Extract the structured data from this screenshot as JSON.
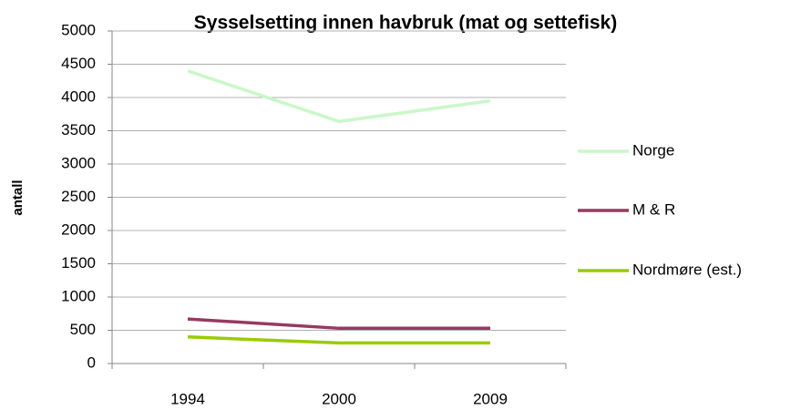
{
  "chart_data": {
    "type": "line",
    "title": "Sysselsetting innen havbruk (mat og settefisk)",
    "y_label": "antall",
    "categories": [
      "1994",
      "2000",
      "2009"
    ],
    "series": [
      {
        "name": "Norge",
        "color": "#c9f7c9",
        "values": [
          4400,
          3640,
          3950
        ]
      },
      {
        "name": "M & R",
        "color": "#963a62",
        "values": [
          670,
          530,
          530
        ]
      },
      {
        "name": "Nordmøre (est.)",
        "color": "#99cc00",
        "values": [
          400,
          310,
          310
        ]
      }
    ],
    "ylim": [
      0,
      5000
    ],
    "yticks": [
      0,
      500,
      1000,
      1500,
      2000,
      2500,
      3000,
      3500,
      4000,
      4500,
      5000
    ],
    "grid": true,
    "legend": "right"
  }
}
